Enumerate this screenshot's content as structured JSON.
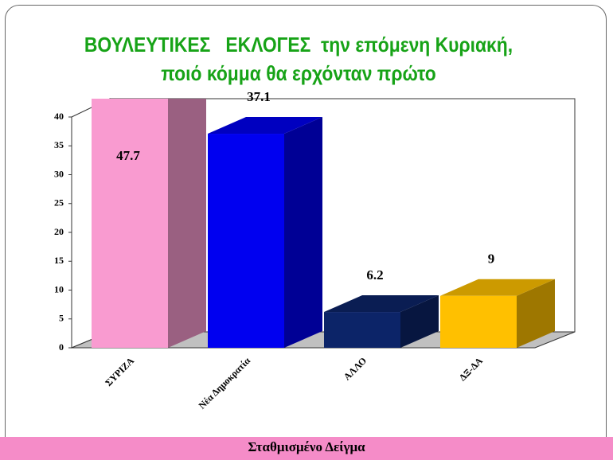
{
  "chart_data": {
    "type": "bar3d",
    "title": "ΒΟΥΛΕΥΤΙΚΕΣ   ΕΚΛΟΓΕΣ  την επόμενη Κυριακή, ποιό κόμμα θα ερχόνταν πρώτο",
    "categories": [
      "ΣΥΡΙΖΑ",
      "Νέα Δημοκρατία",
      "ΑΛΛΟ",
      "ΔΞ-ΔΑ"
    ],
    "values": [
      47.7,
      37.1,
      6.2,
      9
    ],
    "colors": [
      "#f99bd0",
      "#0000f0",
      "#0c2468",
      "#ffc000"
    ],
    "ylim": [
      0,
      40
    ],
    "yticks": [
      0,
      5,
      10,
      15,
      20,
      25,
      30,
      35,
      40
    ]
  },
  "footer": "Σταθμισμένο Δείγμα"
}
